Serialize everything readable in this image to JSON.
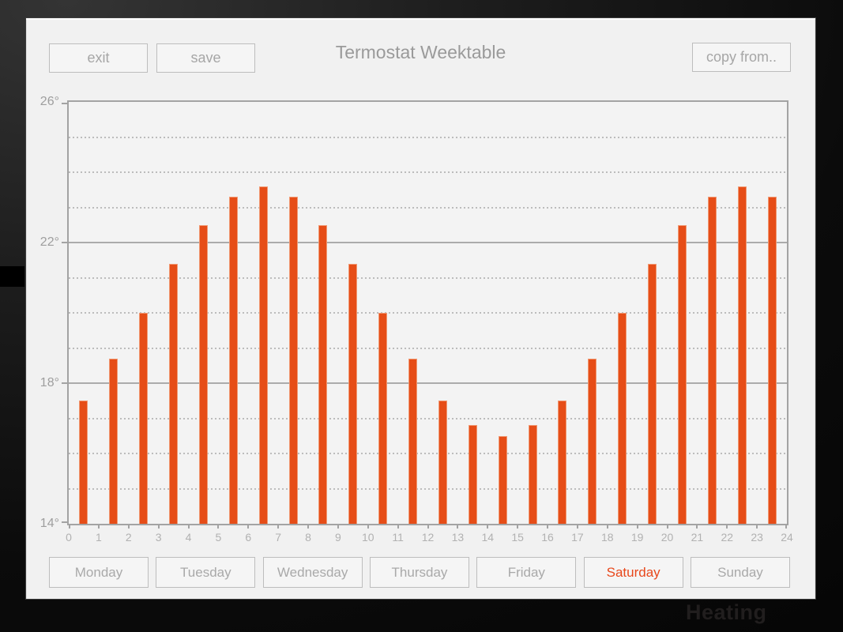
{
  "background": {
    "watermark_text": "Heating"
  },
  "header": {
    "title": "Termostat Weektable",
    "exit_label": "exit",
    "save_label": "save",
    "copy_from_label": "copy from.."
  },
  "chart_data": {
    "type": "bar",
    "title": "Termostat Weektable",
    "x": [
      0,
      1,
      2,
      3,
      4,
      5,
      6,
      7,
      8,
      9,
      10,
      11,
      12,
      13,
      14,
      15,
      16,
      17,
      18,
      19,
      20,
      21,
      22,
      23
    ],
    "values": [
      17.5,
      18.7,
      20.0,
      21.4,
      22.5,
      23.3,
      23.6,
      23.3,
      22.5,
      21.4,
      20.0,
      18.7,
      17.5,
      16.8,
      16.5,
      16.8,
      17.5,
      18.7,
      20.0,
      21.4,
      22.5,
      23.3,
      23.6,
      23.3
    ],
    "unit": "°C",
    "ylim": [
      14,
      26
    ],
    "y_major_ticks": [
      {
        "label": "26°",
        "value": 26
      },
      {
        "label": "22°",
        "value": 22
      },
      {
        "label": "18°",
        "value": 18
      },
      {
        "label": "14°",
        "value": 14
      }
    ],
    "y_minor_step": 1,
    "x_ticks": [
      "0",
      "1",
      "2",
      "3",
      "4",
      "5",
      "6",
      "7",
      "8",
      "9",
      "10",
      "11",
      "12",
      "13",
      "14",
      "15",
      "16",
      "17",
      "18",
      "19",
      "20",
      "21",
      "22",
      "23",
      "24"
    ],
    "grid": true,
    "legend": false,
    "bar_color": "#e64d17"
  },
  "days": {
    "items": [
      {
        "label": "Monday",
        "selected": false
      },
      {
        "label": "Tuesday",
        "selected": false
      },
      {
        "label": "Wednesday",
        "selected": false
      },
      {
        "label": "Thursday",
        "selected": false
      },
      {
        "label": "Friday",
        "selected": false
      },
      {
        "label": "Saturday",
        "selected": true
      },
      {
        "label": "Sunday",
        "selected": false
      }
    ],
    "selected_color": "#e8481c"
  }
}
